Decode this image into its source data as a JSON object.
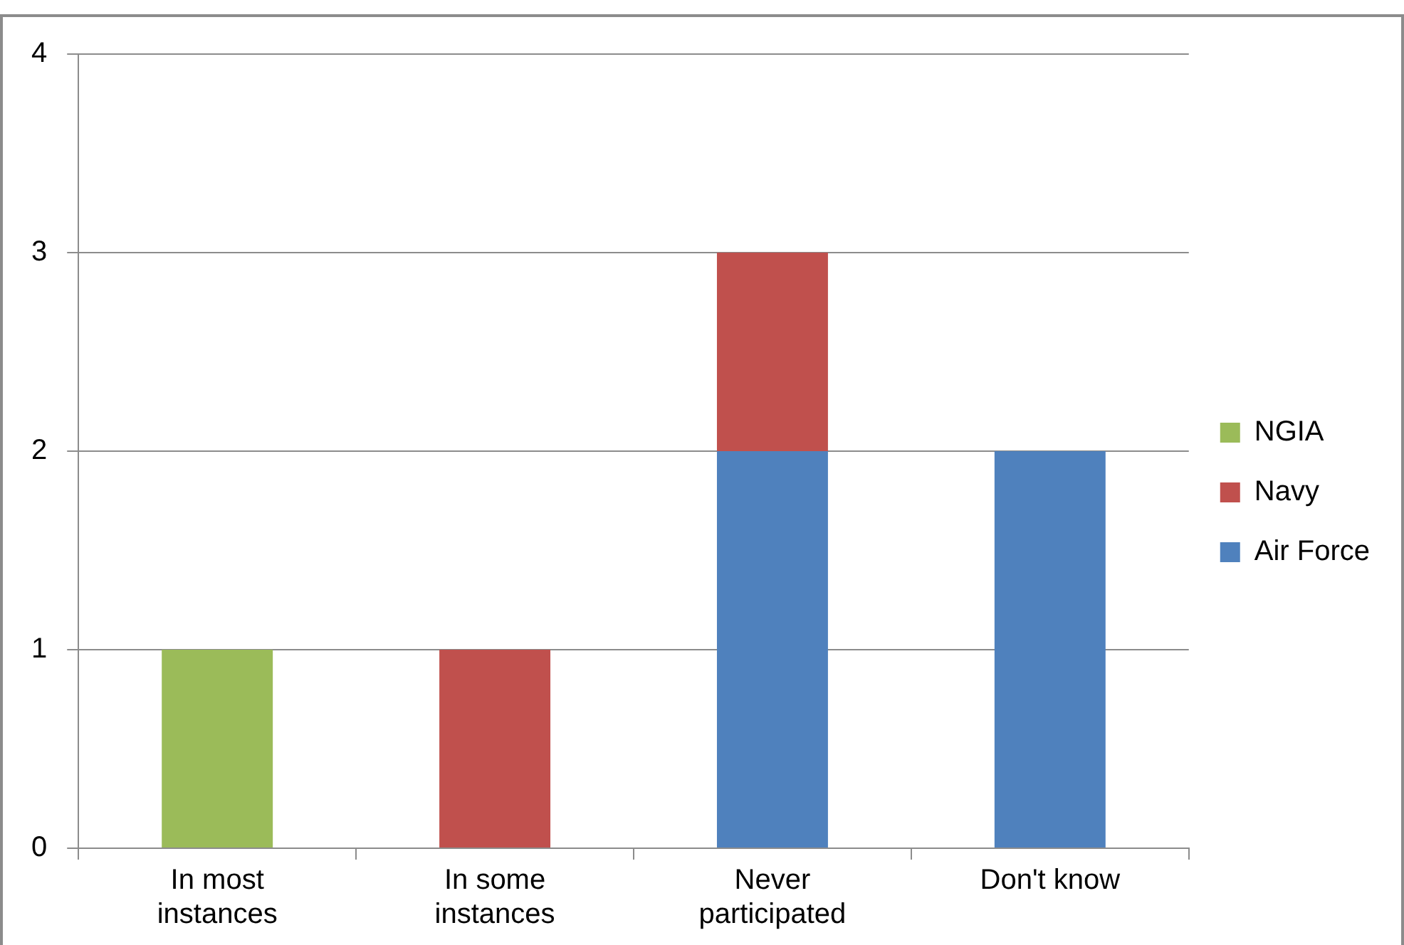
{
  "chart_data": {
    "type": "bar",
    "stacked": true,
    "categories": [
      "In most instances",
      "In some instances",
      "Never participated",
      "Don't know"
    ],
    "series": [
      {
        "name": "Air Force",
        "color": "#4f81bd",
        "values": [
          0,
          0,
          2,
          2
        ]
      },
      {
        "name": "Navy",
        "color": "#c0504d",
        "values": [
          0,
          1,
          1,
          0
        ]
      },
      {
        "name": "NGIA",
        "color": "#9bbb59",
        "values": [
          1,
          0,
          0,
          0
        ]
      }
    ],
    "ylim": [
      0,
      4
    ],
    "yticks": [
      0,
      1,
      2,
      3,
      4
    ],
    "grid": "y",
    "legend": "right"
  }
}
